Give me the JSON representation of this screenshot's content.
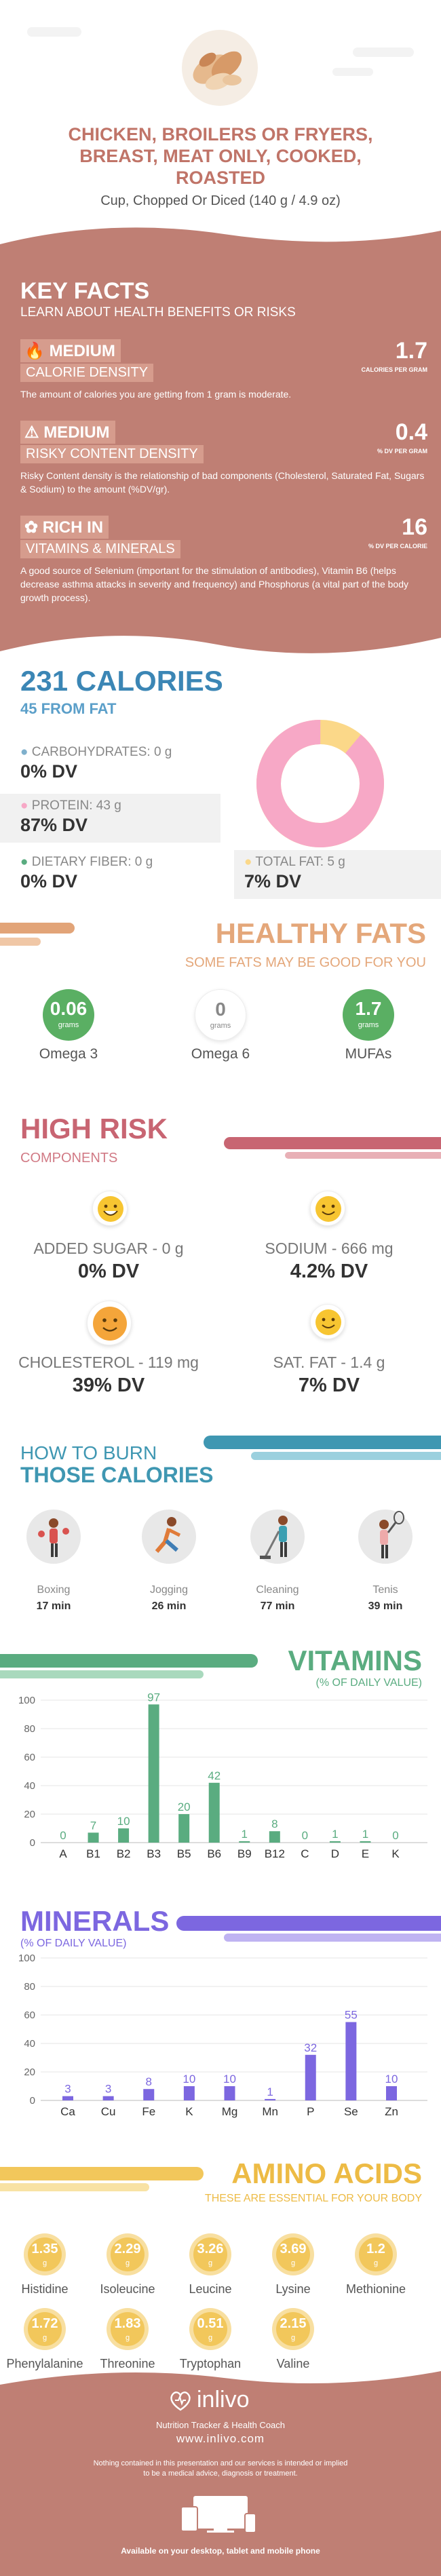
{
  "header": {
    "title_line1": "CHICKEN, BROILERS OR FRYERS,",
    "title_line2": "BREAST, MEAT ONLY, COOKED,",
    "title_line3": "ROASTED",
    "serving": "Cup, Chopped Or Diced (140 g / 4.9 oz)"
  },
  "key_facts": {
    "title": "KEY FACTS",
    "subtitle": "LEARN ABOUT HEALTH BENEFITS OR RISKS",
    "items": [
      {
        "level": "MEDIUM",
        "label": "CALORIE DENSITY",
        "value": "1.7",
        "unit": "CALORIES PER GRAM",
        "desc": "The amount of calories you are getting from 1 gram is moderate."
      },
      {
        "level": "MEDIUM",
        "label": "RISKY CONTENT DENSITY",
        "value": "0.4",
        "unit": "% DV PER GRAM",
        "desc": "Risky Content density is the relationship of bad components (Cholesterol, Saturated Fat, Sugars & Sodium) to the amount (%DV/gr)."
      },
      {
        "level": "RICH  IN",
        "label": "VITAMINS & MINERALS",
        "value": "16",
        "unit": "% DV PER CALORIE",
        "desc": "A good source of Selenium (important for the stimulation of antibodies), Vitamin B6 (helps decrease asthma attacks in severity and frequency) and Phosphorus (a vital part of the body growth process)."
      }
    ]
  },
  "calories": {
    "title": "231 CALORIES",
    "subtitle": "45 FROM FAT",
    "carbs_label": "CARBOHYDRATES: 0 g",
    "carbs_dv": "0% DV",
    "protein_label": "PROTEIN: 43 g",
    "protein_dv": "87% DV",
    "fiber_label": "DIETARY FIBER: 0 g",
    "fiber_dv": "0% DV",
    "fat_label": "TOTAL FAT: 5 g",
    "fat_dv": "7% DV",
    "donut_protein_fraction": 0.89,
    "colors": {
      "protein": "#f7a8c6",
      "fat": "#fbd889",
      "carbs": "#7fb0cc"
    }
  },
  "healthy_fats": {
    "title": "HEALTHY FATS",
    "subtitle": "SOME FATS MAY BE GOOD FOR YOU",
    "items": [
      {
        "value": "0.06",
        "unit": "grams",
        "name": "Omega 3"
      },
      {
        "value": "0",
        "unit": "grams",
        "name": "Omega 6"
      },
      {
        "value": "1.7",
        "unit": "grams",
        "name": "MUFAs"
      }
    ]
  },
  "high_risk": {
    "title": "HIGH RISK",
    "subtitle": "COMPONENTS",
    "items": [
      {
        "label": "ADDED SUGAR - 0 g",
        "dv": "0% DV"
      },
      {
        "label": "SODIUM - 666 mg",
        "dv": "4.2% DV"
      },
      {
        "label": "CHOLESTEROL - 119 mg",
        "dv": "39% DV"
      },
      {
        "label": "SAT. FAT - 1.4 g",
        "dv": "7% DV"
      }
    ]
  },
  "burn": {
    "title1": "HOW TO BURN",
    "title2": "THOSE CALORIES",
    "items": [
      {
        "name": "Boxing",
        "minutes": "17 min"
      },
      {
        "name": "Jogging",
        "minutes": "26 min"
      },
      {
        "name": "Cleaning",
        "minutes": "77 min"
      },
      {
        "name": "Tenis",
        "minutes": "39 min"
      }
    ]
  },
  "vitamins": {
    "title": "VITAMINS",
    "subtitle": "(% OF DAILY VALUE)"
  },
  "minerals": {
    "title": "MINERALS",
    "subtitle": "(% OF DAILY VALUE)"
  },
  "amino": {
    "title": "AMINO ACIDS",
    "subtitle": "THESE ARE ESSENTIAL FOR YOUR BODY",
    "unit": "g",
    "items": [
      {
        "name": "Histidine",
        "value": "1.35"
      },
      {
        "name": "Isoleucine",
        "value": "2.29"
      },
      {
        "name": "Leucine",
        "value": "3.26"
      },
      {
        "name": "Lysine",
        "value": "3.69"
      },
      {
        "name": "Methionine",
        "value": "1.2"
      },
      {
        "name": "Phenylalanine",
        "value": "1.72"
      },
      {
        "name": "Threonine",
        "value": "1.83"
      },
      {
        "name": "Tryptophan",
        "value": "0.51"
      },
      {
        "name": "Valine",
        "value": "2.15"
      }
    ]
  },
  "footer": {
    "brand": "inlivo",
    "tagline": "Nutrition Tracker & Health Coach",
    "url": "www.inlivo.com",
    "disclaimer1": "Nothing contained in this presentation and our services is intended or implied",
    "disclaimer2": "to be a medical advice, diagnosis or treatment.",
    "available": "Available on your desktop, tablet and mobile phone"
  },
  "chart_data": [
    {
      "type": "bar",
      "title": "VITAMINS",
      "categories": [
        "A",
        "B1",
        "B2",
        "B3",
        "B5",
        "B6",
        "B9",
        "B12",
        "C",
        "D",
        "E",
        "K"
      ],
      "values": [
        0,
        7,
        10,
        97,
        20,
        42,
        1,
        8,
        0,
        1,
        1,
        0
      ],
      "ylim": [
        0,
        100
      ],
      "yticks": [
        0,
        20,
        40,
        60,
        80,
        100
      ],
      "color": "#5aac80"
    },
    {
      "type": "bar",
      "title": "MINERALS",
      "categories": [
        "Ca",
        "Cu",
        "Fe",
        "K",
        "Mg",
        "Mn",
        "P",
        "Se",
        "Zn"
      ],
      "values": [
        3,
        3,
        8,
        10,
        10,
        1,
        32,
        55,
        10
      ],
      "ylim": [
        0,
        100
      ],
      "yticks": [
        0,
        20,
        40,
        60,
        80,
        100
      ],
      "color": "#7c67e0"
    }
  ]
}
